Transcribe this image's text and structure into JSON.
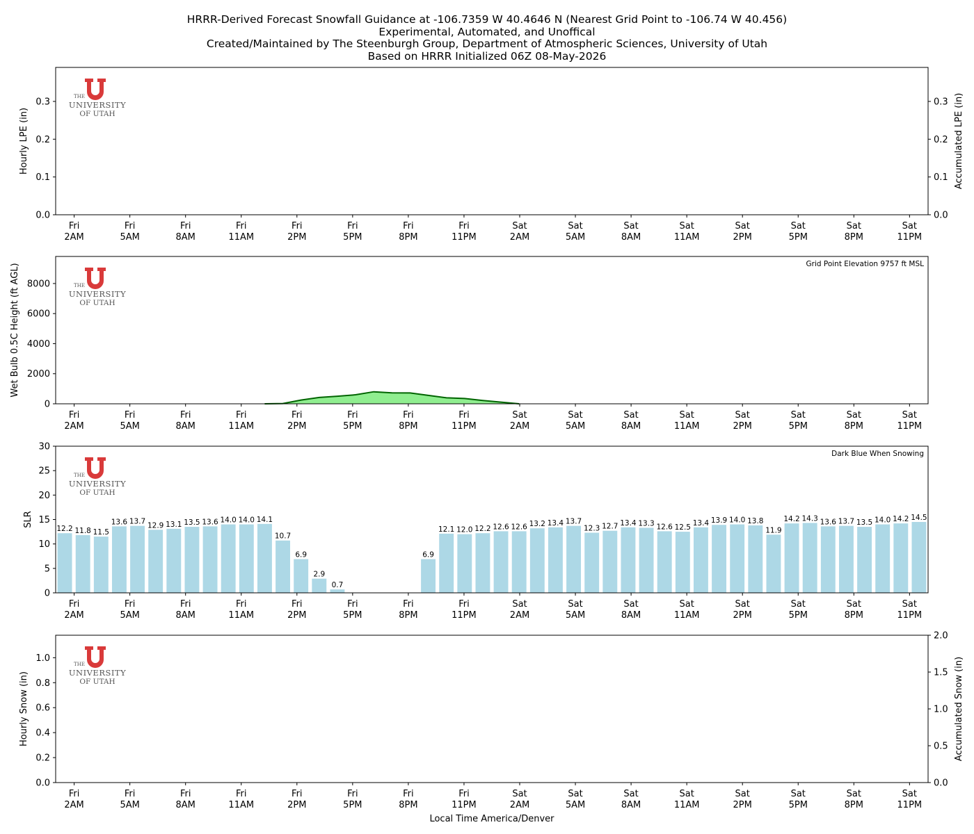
{
  "title_lines": [
    "HRRR-Derived Forecast Snowfall Guidance at -106.7359 W 40.4646 N (Nearest Grid Point to -106.74 W 40.456)",
    "Experimental, Automated, and Unoffical",
    "Created/Maintained by The Steenburgh Group, Department of Atmospheric Sciences, University of Utah",
    "Based on HRRR Initialized 06Z 08-May-2026"
  ],
  "xlabel": "Local Time America/Denver",
  "logo": {
    "line1": "THE",
    "line2": "UNIVERSITY",
    "line3": "OF UTAH"
  },
  "colors": {
    "logo_red": "#d93a3a",
    "area_fill": "#90ee90",
    "area_line": "#006400",
    "bar_light": "#add8e6",
    "bar_snow": "#00008b"
  },
  "chart_data": [
    {
      "type": "bar",
      "name": "hourly-lpe",
      "ylabel": "Hourly LPE (in)",
      "ylabel_right": "Accumulated LPE (in)",
      "ylim": [
        0,
        0.39
      ],
      "yticks": [
        0.0,
        0.1,
        0.2,
        0.3
      ],
      "ytick_labels": [
        "0.0",
        "0.1",
        "0.2",
        "0.3"
      ],
      "yticks_right": [
        0.0,
        0.1,
        0.2,
        0.3
      ],
      "ytick_labels_right": [
        "0.0",
        "0.1",
        "0.2",
        "0.3"
      ],
      "x_ticks_day": [
        "Fri",
        "Fri",
        "Fri",
        "Fri",
        "Fri",
        "Fri",
        "Fri",
        "Fri",
        "Sat",
        "Sat",
        "Sat",
        "Sat",
        "Sat",
        "Sat",
        "Sat",
        "Sat"
      ],
      "x_ticks_hour": [
        "2AM",
        "5AM",
        "8AM",
        "11AM",
        "2PM",
        "5PM",
        "8PM",
        "11PM",
        "2AM",
        "5AM",
        "8AM",
        "11AM",
        "2PM",
        "5PM",
        "8PM",
        "11PM"
      ],
      "values": [],
      "annotation": ""
    },
    {
      "type": "area",
      "name": "wet-bulb-height",
      "ylabel": "Wet Bulb 0.5C Height (ft AGL)",
      "ylim": [
        0,
        9800
      ],
      "yticks": [
        0,
        2000,
        4000,
        6000,
        8000
      ],
      "ytick_labels": [
        "0",
        "2000",
        "4000",
        "6000",
        "8000"
      ],
      "x_ticks_day": [
        "Fri",
        "Fri",
        "Fri",
        "Fri",
        "Fri",
        "Fri",
        "Fri",
        "Fri",
        "Sat",
        "Sat",
        "Sat",
        "Sat",
        "Sat",
        "Sat",
        "Sat",
        "Sat"
      ],
      "x_ticks_hour": [
        "2AM",
        "5AM",
        "8AM",
        "11AM",
        "2PM",
        "5PM",
        "8PM",
        "11PM",
        "2AM",
        "5AM",
        "8AM",
        "11AM",
        "2PM",
        "5PM",
        "8PM",
        "11PM"
      ],
      "x_hours": [
        0,
        1,
        2,
        3,
        4,
        5,
        6,
        7,
        8,
        9,
        10,
        11,
        12,
        13,
        14,
        15,
        16,
        17,
        18,
        19,
        20,
        21,
        22,
        23,
        24,
        25,
        26,
        27,
        28,
        29,
        30,
        31,
        32,
        33,
        34,
        35,
        36,
        37,
        38,
        39,
        40,
        41,
        42,
        43,
        44,
        45,
        46,
        47
      ],
      "values": [
        0,
        0,
        0,
        0,
        0,
        0,
        0,
        0,
        0,
        0,
        0,
        0,
        20,
        250,
        420,
        500,
        600,
        800,
        730,
        720,
        560,
        400,
        350,
        220,
        110,
        0,
        0,
        0,
        0,
        0,
        0,
        0,
        0,
        0,
        0,
        0,
        0,
        0,
        0,
        0,
        0,
        0,
        0,
        0,
        0,
        0,
        0,
        0
      ],
      "annotation": "Grid Point Elevation 9757 ft MSL"
    },
    {
      "type": "bar",
      "name": "slr",
      "ylabel": "SLR",
      "ylim": [
        0,
        30
      ],
      "yticks": [
        0,
        5,
        10,
        15,
        20,
        25,
        30
      ],
      "ytick_labels": [
        "0",
        "5",
        "10",
        "15",
        "20",
        "25",
        "30"
      ],
      "x_ticks_day": [
        "Fri",
        "Fri",
        "Fri",
        "Fri",
        "Fri",
        "Fri",
        "Fri",
        "Fri",
        "Sat",
        "Sat",
        "Sat",
        "Sat",
        "Sat",
        "Sat",
        "Sat",
        "Sat"
      ],
      "x_ticks_hour": [
        "2AM",
        "5AM",
        "8AM",
        "11AM",
        "2PM",
        "5PM",
        "8PM",
        "11PM",
        "2AM",
        "5AM",
        "8AM",
        "11AM",
        "2PM",
        "5PM",
        "8PM",
        "11PM"
      ],
      "values": [
        12.2,
        11.8,
        11.5,
        13.6,
        13.7,
        12.9,
        13.1,
        13.5,
        13.6,
        14.0,
        14.0,
        14.1,
        10.7,
        6.9,
        2.9,
        0.7,
        0,
        0,
        0,
        0,
        6.9,
        12.1,
        12.0,
        12.2,
        12.6,
        12.6,
        13.2,
        13.4,
        13.7,
        12.3,
        12.7,
        13.4,
        13.3,
        12.6,
        12.5,
        13.4,
        13.9,
        14.0,
        13.8,
        11.9,
        14.2,
        14.3,
        13.6,
        13.7,
        13.5,
        14.0,
        14.2,
        14.5
      ],
      "labels": [
        "12.2",
        "11.8",
        "11.5",
        "13.6",
        "13.7",
        "12.9",
        "13.1",
        "13.5",
        "13.6",
        "14.0",
        "14.0",
        "14.1",
        "10.7",
        "6.9",
        "2.9",
        "0.7",
        "",
        "",
        "",
        "",
        "6.9",
        "12.1",
        "12.0",
        "12.2",
        "12.6",
        "12.6",
        "13.2",
        "13.4",
        "13.7",
        "12.3",
        "12.7",
        "13.4",
        "13.3",
        "12.6",
        "12.5",
        "13.4",
        "13.9",
        "14.0",
        "13.8",
        "11.9",
        "14.2",
        "14.3",
        "13.6",
        "13.7",
        "13.5",
        "14.0",
        "14.2",
        "14.5"
      ],
      "annotation": "Dark Blue When Snowing"
    },
    {
      "type": "bar",
      "name": "hourly-snow",
      "ylabel": "Hourly Snow (in)",
      "ylabel_right": "Accumulated Snow (in)",
      "ylim": [
        0,
        1.18
      ],
      "yticks": [
        0.0,
        0.2,
        0.4,
        0.6,
        0.8,
        1.0
      ],
      "ytick_labels": [
        "0.0",
        "0.2",
        "0.4",
        "0.6",
        "0.8",
        "1.0"
      ],
      "yticks_right": [
        0.0,
        0.5,
        1.0,
        1.5,
        2.0
      ],
      "ytick_labels_right": [
        "0.0",
        "0.5",
        "1.0",
        "1.5",
        "2.0"
      ],
      "ylim_right": [
        0,
        2.0
      ],
      "x_ticks_day": [
        "Fri",
        "Fri",
        "Fri",
        "Fri",
        "Fri",
        "Fri",
        "Fri",
        "Fri",
        "Sat",
        "Sat",
        "Sat",
        "Sat",
        "Sat",
        "Sat",
        "Sat",
        "Sat"
      ],
      "x_ticks_hour": [
        "2AM",
        "5AM",
        "8AM",
        "11AM",
        "2PM",
        "5PM",
        "8PM",
        "11PM",
        "2AM",
        "5AM",
        "8AM",
        "11AM",
        "2PM",
        "5PM",
        "8PM",
        "11PM"
      ],
      "values": [],
      "annotation": ""
    }
  ]
}
